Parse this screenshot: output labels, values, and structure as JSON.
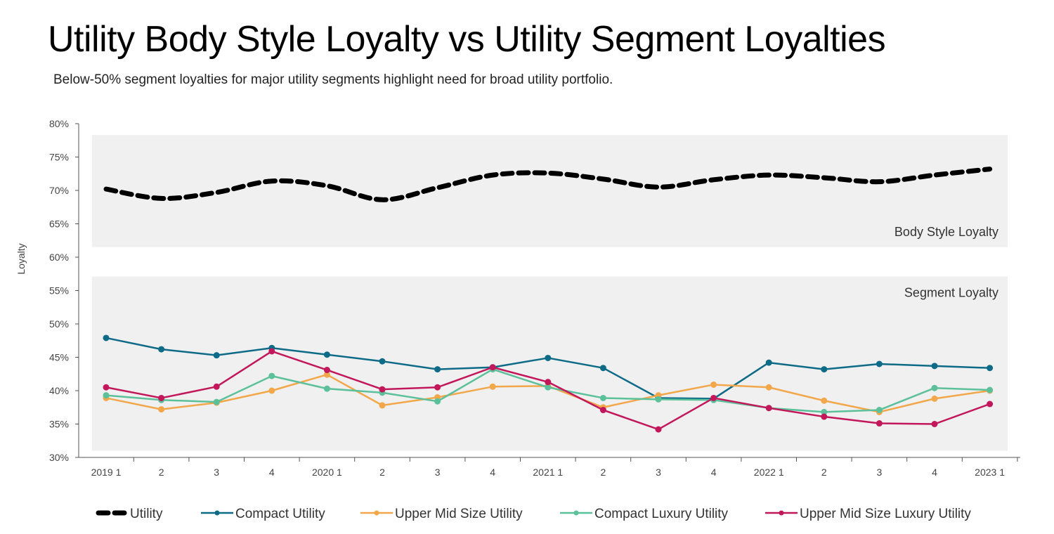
{
  "header": {
    "title": "Utility Body Style Loyalty vs Utility Segment Loyalties",
    "subtitle": "Below-50% segment loyalties for major utility segments highlight need for broad utility portfolio."
  },
  "chart_data": {
    "type": "line",
    "title": "Utility Body Style Loyalty vs Utility Segment Loyalties",
    "xlabel": "",
    "ylabel": "Loyalty",
    "ylim": [
      30,
      80
    ],
    "yticks": [
      "30%",
      "35%",
      "40%",
      "45%",
      "50%",
      "55%",
      "60%",
      "65%",
      "70%",
      "75%",
      "80%"
    ],
    "ytick_values": [
      30,
      35,
      40,
      45,
      50,
      55,
      60,
      65,
      70,
      75,
      80
    ],
    "categories": [
      "2019 1",
      "2",
      "3",
      "4",
      "2020 1",
      "2",
      "3",
      "4",
      "2021 1",
      "2",
      "3",
      "4",
      "2022 1",
      "2",
      "3",
      "4",
      "2023 1"
    ],
    "grid": false,
    "legend_position": "bottom",
    "bands": [
      {
        "label": "Body Style Loyalty",
        "range": [
          61.5,
          78.3
        ]
      },
      {
        "label": "Segment Loyalty",
        "range": [
          31.0,
          57.1
        ]
      }
    ],
    "series": [
      {
        "name": "Utility",
        "color": "#000000",
        "style": "dashed",
        "markers": false,
        "values": [
          70.2,
          68.8,
          69.7,
          71.4,
          70.7,
          68.6,
          70.4,
          72.3,
          72.6,
          71.7,
          70.5,
          71.6,
          72.3,
          71.9,
          71.3,
          72.3,
          73.2
        ]
      },
      {
        "name": "Compact Utility",
        "color": "#0e6b87",
        "style": "solid",
        "markers": true,
        "values": [
          47.9,
          46.2,
          45.3,
          46.4,
          45.4,
          44.4,
          43.2,
          43.5,
          44.9,
          43.4,
          38.9,
          38.8,
          44.2,
          43.2,
          44.0,
          43.7,
          43.4
        ]
      },
      {
        "name": "Upper Mid Size Utility",
        "color": "#f2a74b",
        "style": "solid",
        "markers": true,
        "values": [
          38.9,
          37.2,
          38.2,
          40.0,
          42.4,
          37.8,
          39.0,
          40.6,
          40.7,
          37.5,
          39.3,
          40.9,
          40.5,
          38.5,
          36.8,
          38.8,
          40.0
        ]
      },
      {
        "name": "Compact Luxury Utility",
        "color": "#5cc19a",
        "style": "solid",
        "markers": true,
        "values": [
          39.3,
          38.6,
          38.3,
          42.2,
          40.3,
          39.7,
          38.4,
          43.2,
          40.5,
          38.9,
          38.7,
          38.6,
          37.4,
          36.8,
          37.1,
          40.4,
          40.1
        ]
      },
      {
        "name": "Upper Mid Size Luxury Utility",
        "color": "#c2185b",
        "style": "solid",
        "markers": true,
        "values": [
          40.5,
          38.9,
          40.6,
          45.9,
          43.1,
          40.2,
          40.5,
          43.5,
          41.3,
          37.1,
          34.2,
          38.9,
          37.4,
          36.1,
          35.1,
          35.0,
          38.0
        ]
      }
    ]
  }
}
